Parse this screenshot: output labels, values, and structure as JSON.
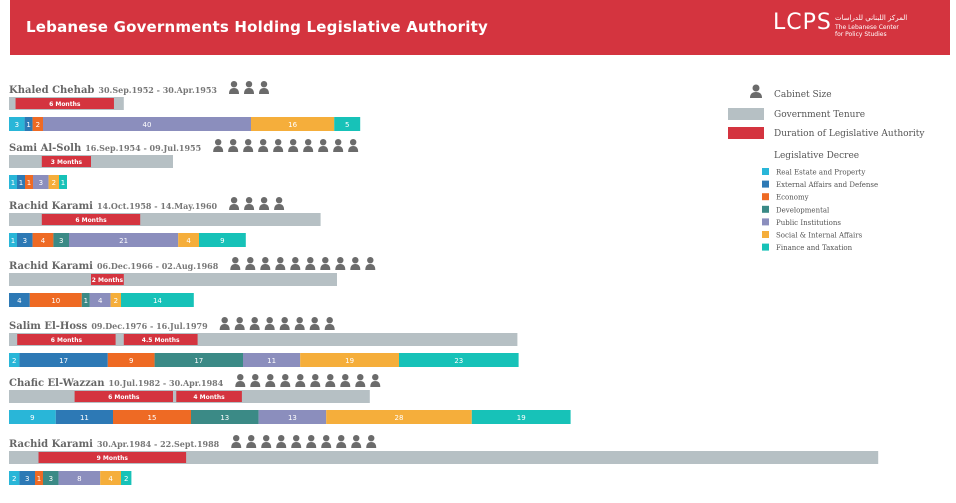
{
  "header": {
    "title": "Lebanese Governments Holding Legislative Authority",
    "logo": "LCPS",
    "logo_arabic": "المركز اللبناني للدراسات",
    "logo_english": "The Lebanese Center for Policy Studies",
    "color": "#d4343f"
  },
  "legend": {
    "cabinet_size": "Cabinet Size",
    "government_tenure": "Government Tenure",
    "duration": "Duration of Legislative Authority",
    "decree_title": "Legislative Decree",
    "categories": [
      {
        "label": "Real Estate and Property",
        "color": "#29b6d8"
      },
      {
        "label": "External Affairs and Defense",
        "color": "#2d79b5"
      },
      {
        "label": "Economy",
        "color": "#ee6a24"
      },
      {
        "label": "Developmental",
        "color": "#3b8a86"
      },
      {
        "label": "Public Institutions",
        "color": "#8b8ebd"
      },
      {
        "label": "Social & Internal Affairs",
        "color": "#f5ae3b"
      },
      {
        "label": "Finance and Taxation",
        "color": "#17c2b8"
      }
    ]
  },
  "colors": {
    "tenure": "#b6c0c4",
    "duration": "#d4343f",
    "icon": "#6b6b6b"
  },
  "chart_data": {
    "type": "bar",
    "title": "Lebanese Governments Holding Legislative Authority",
    "series_names": [
      "Real Estate and Property",
      "External Affairs and Defense",
      "Economy",
      "Developmental",
      "Public Institutions",
      "Social & Internal Affairs",
      "Finance and Taxation"
    ],
    "governments": [
      {
        "name": "Khaled Chehab",
        "dates": "30.Sep.1952 - 30.Apr.1953",
        "cabinet_size": 3,
        "tenure_months": 7,
        "authority_label": "6 Months",
        "authority_start_month": 0.4,
        "authority_months": 6,
        "decrees": [
          3,
          1,
          2,
          0,
          40,
          16,
          5
        ]
      },
      {
        "name": "Sami Al-Solh",
        "dates": "16.Sep.1954 - 09.Jul.1955",
        "cabinet_size": 10,
        "tenure_months": 10,
        "authority_label": "3 Months",
        "authority_start_month": 2,
        "authority_months": 3,
        "decrees": [
          1,
          1,
          1,
          0,
          3,
          2,
          1
        ]
      },
      {
        "name": "Rachid Karami",
        "dates": "14.Oct.1958 - 14.May.1960",
        "cabinet_size": 4,
        "tenure_months": 19,
        "authority_label": "6 Months",
        "authority_start_month": 2,
        "authority_months": 6,
        "decrees": [
          1,
          3,
          4,
          3,
          21,
          4,
          9
        ]
      },
      {
        "name": "Rachid Karami",
        "dates": "06.Dec.1966 - 02.Aug.1968",
        "cabinet_size": 10,
        "tenure_months": 20,
        "authority_label": "2 Months",
        "authority_start_month": 5,
        "authority_months": 2,
        "decrees": [
          0,
          4,
          10,
          1,
          4,
          2,
          14
        ]
      },
      {
        "name": "Salim El-Hoss",
        "dates": "09.Dec.1976 - 16.Jul.1979",
        "cabinet_size": 8,
        "tenure_months": 31,
        "authority_labels": [
          "6 Months",
          "4.5 Months"
        ],
        "authority_segments": [
          [
            0.5,
            6
          ],
          [
            7,
            4.5
          ]
        ],
        "decrees": [
          2,
          17,
          9,
          17,
          11,
          19,
          23
        ]
      },
      {
        "name": "Chafic El-Wazzan",
        "dates": "10.Jul.1982 - 30.Apr.1984",
        "cabinet_size": 10,
        "tenure_months": 22,
        "authority_labels": [
          "6 Months",
          "4 Months"
        ],
        "authority_segments": [
          [
            4,
            6
          ],
          [
            10.2,
            4
          ]
        ],
        "decrees": [
          9,
          11,
          15,
          13,
          13,
          28,
          19
        ]
      },
      {
        "name": "Rachid Karami",
        "dates": "30.Apr.1984 - 22.Sept.1988",
        "cabinet_size": 10,
        "tenure_months": 53,
        "authority_label": "9 Months",
        "authority_start_month": 1.8,
        "authority_months": 9,
        "decrees": [
          2,
          3,
          1,
          3,
          8,
          4,
          2
        ]
      }
    ]
  }
}
